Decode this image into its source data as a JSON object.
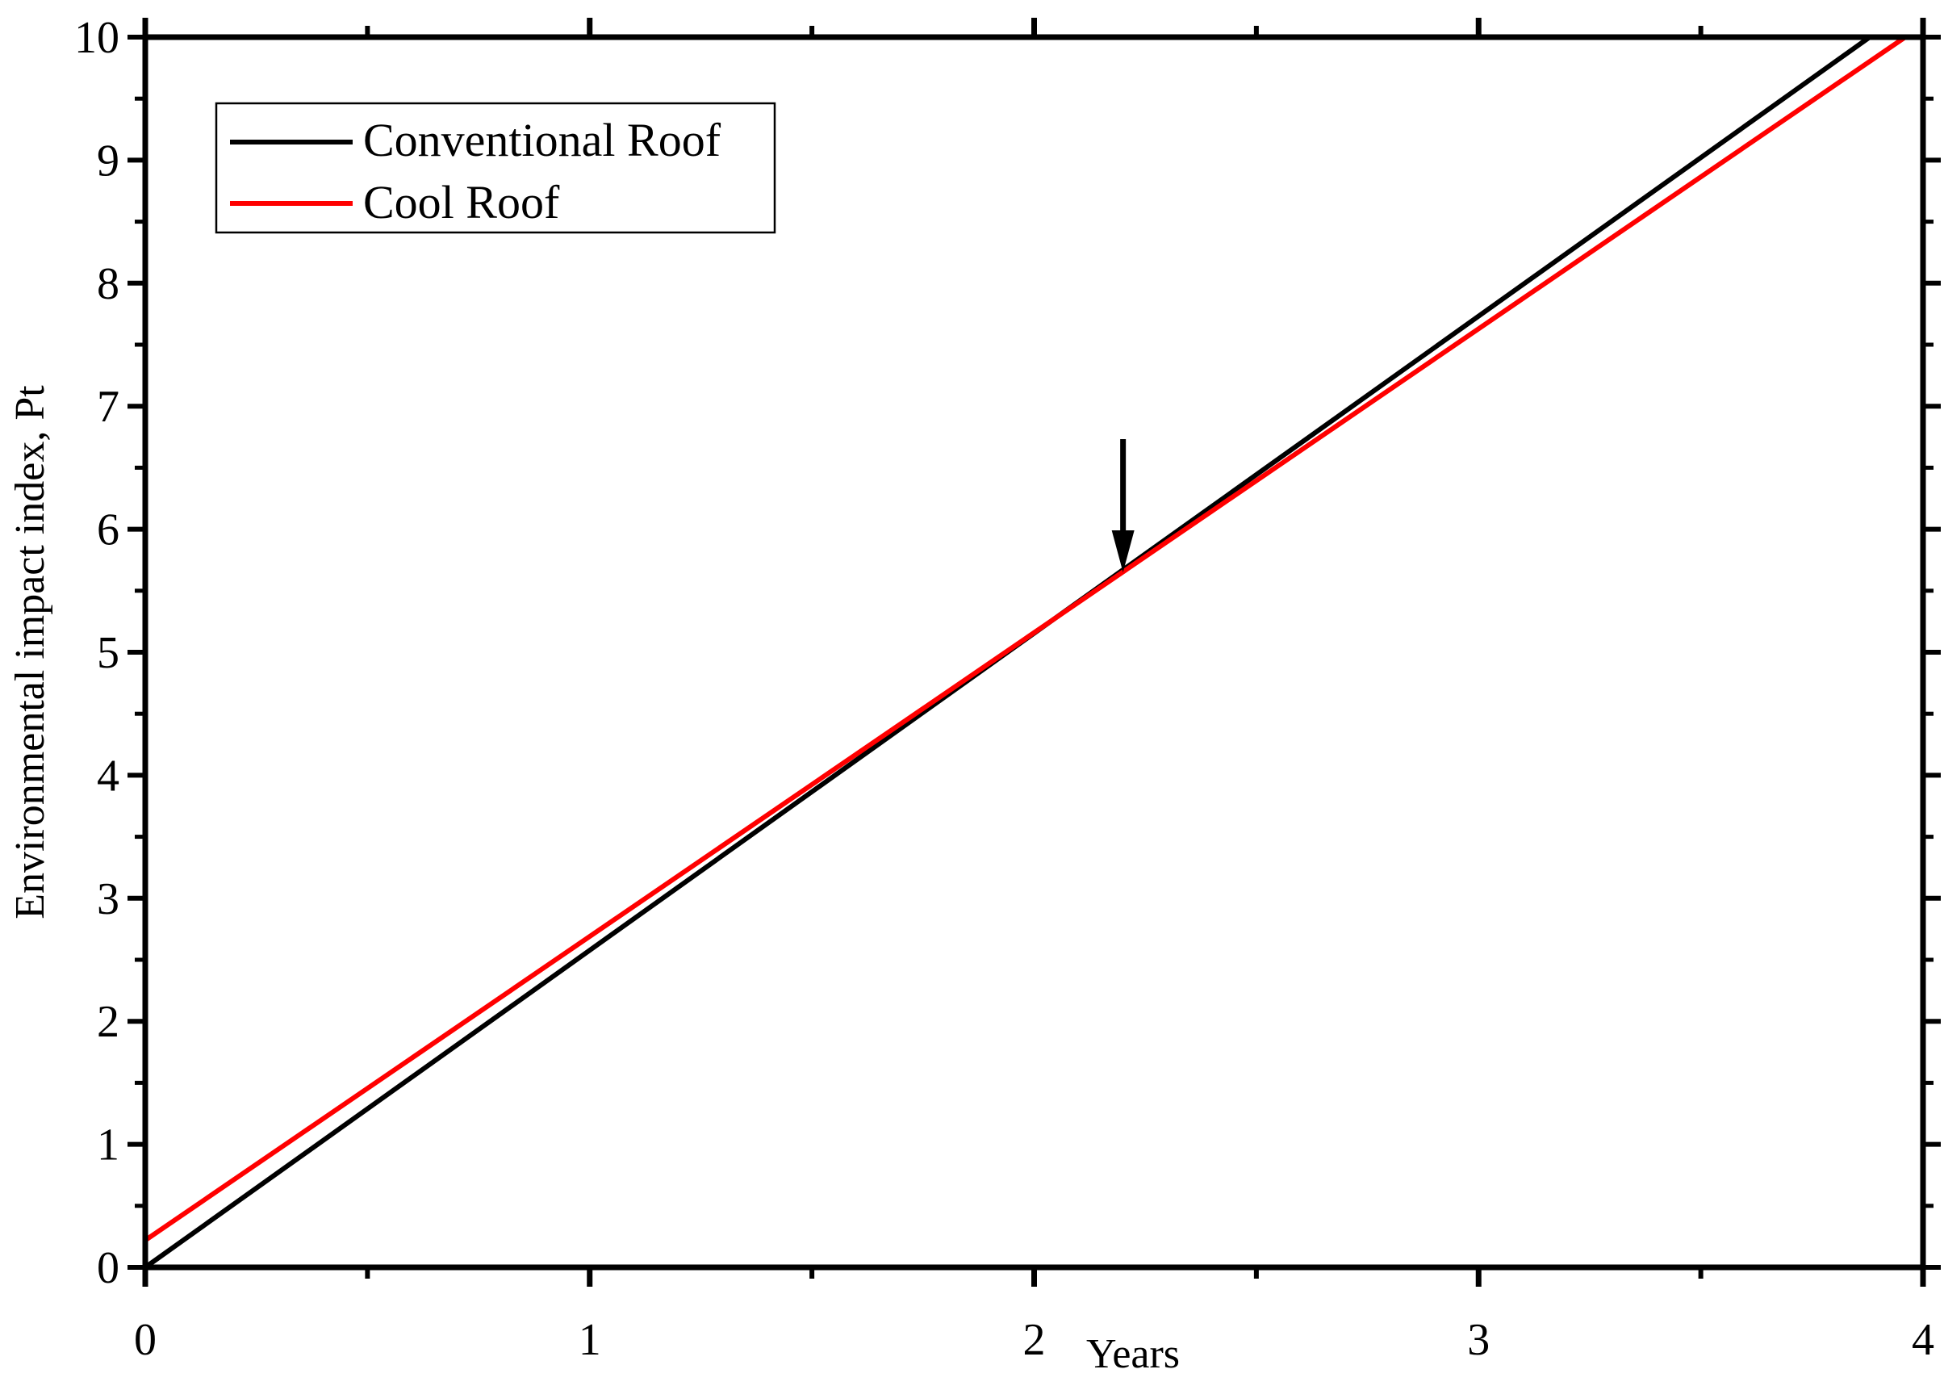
{
  "chart_data": {
    "type": "line",
    "title": "",
    "xlabel": "Years",
    "ylabel": "Environmental impact index,  Pt",
    "xlim": [
      0,
      4
    ],
    "ylim": [
      0,
      10
    ],
    "xticks": [
      0,
      1,
      2,
      3,
      4
    ],
    "yticks": [
      0,
      1,
      2,
      3,
      4,
      5,
      6,
      7,
      8,
      9,
      10
    ],
    "x_tick_labels": [
      "0",
      "1",
      "2",
      "3",
      "4"
    ],
    "y_tick_labels": [
      "0",
      "1",
      "2",
      "3",
      "4",
      "5",
      "6",
      "7",
      "8",
      "9",
      "10"
    ],
    "grid": false,
    "legend_position": "top-left",
    "series": [
      {
        "name": "Conventional Roof",
        "color": "#000000",
        "x": [
          0,
          3.88
        ],
        "y": [
          0,
          10
        ]
      },
      {
        "name": "Cool Roof",
        "color": "#ff0000",
        "x": [
          0,
          3.96
        ],
        "y": [
          0.22,
          10
        ]
      }
    ],
    "annotations": [
      {
        "type": "arrow",
        "label": "",
        "x": 2.2,
        "y": 5.65,
        "icon": "down-arrow-icon"
      }
    ]
  }
}
